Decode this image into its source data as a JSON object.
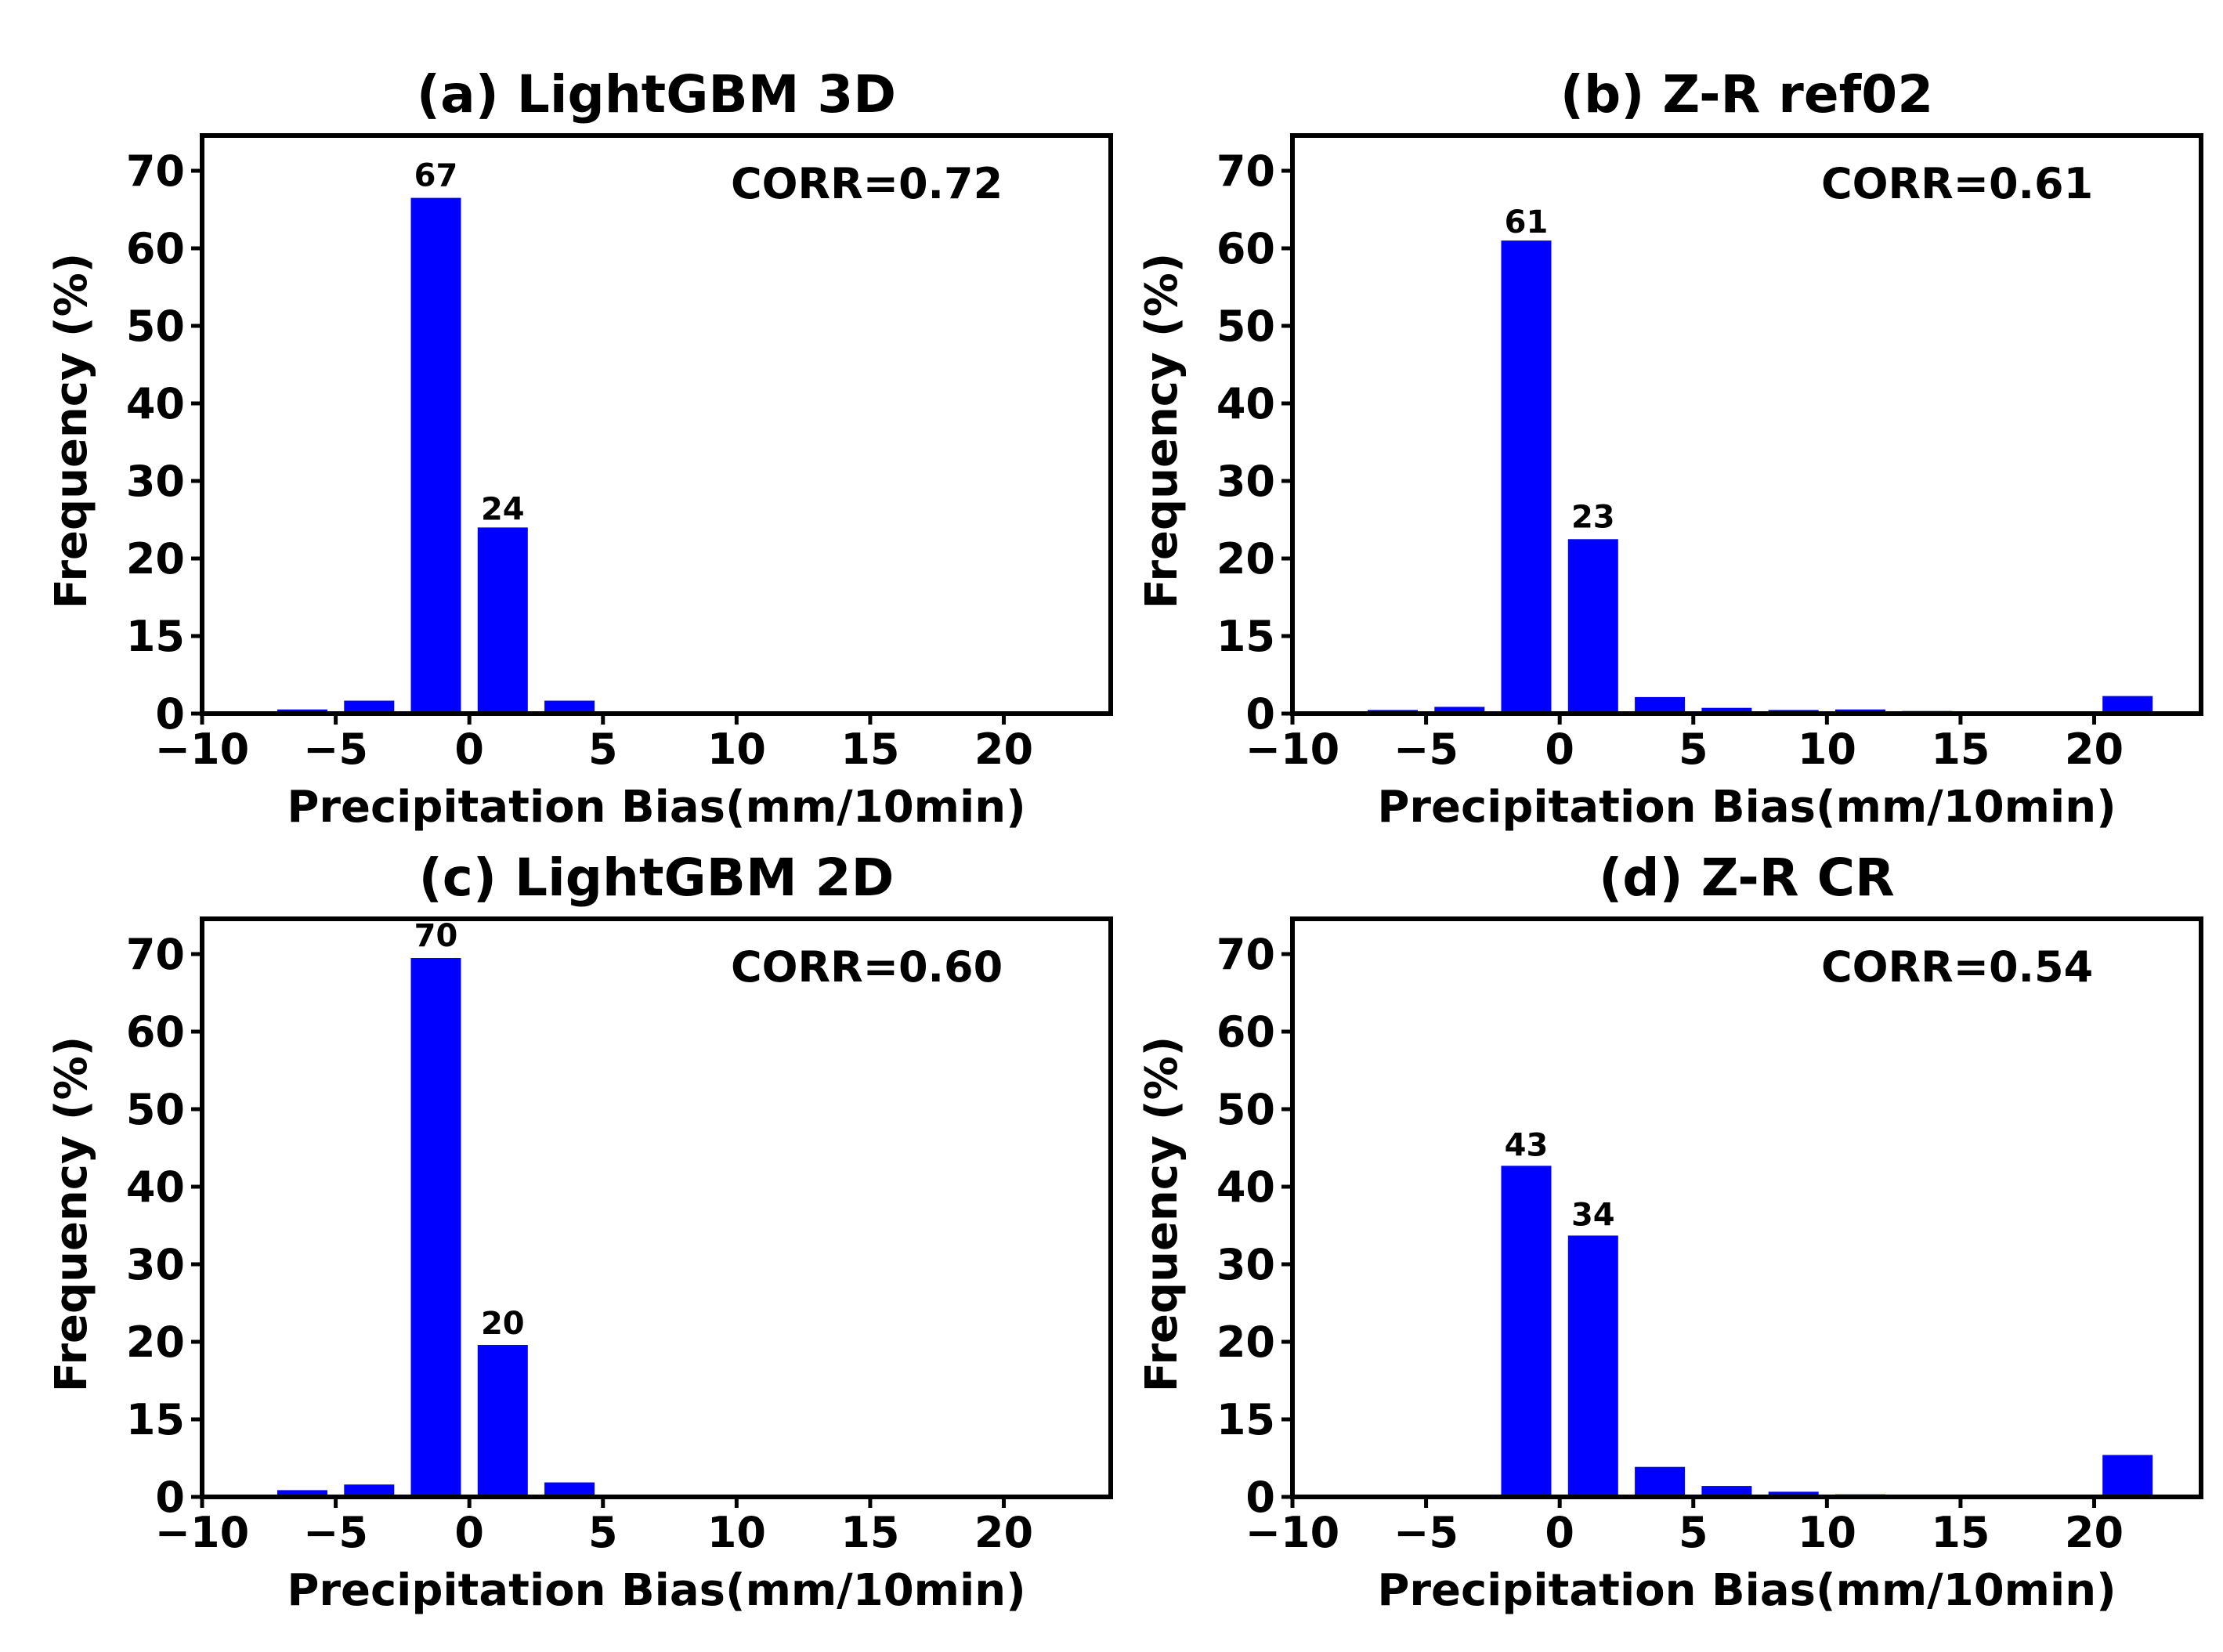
{
  "figure": {
    "bar_color": "#0000ff",
    "axis_color": "#000000",
    "background": "#ffffff"
  },
  "chart_data": [
    {
      "id": "a",
      "type": "bar",
      "title": "(a) LightGBM 3D",
      "xlabel": "Precipitation Bias(mm/10min)",
      "ylabel": "Frequency (%)",
      "annotation": "CORR=0.72",
      "xlim": [
        -10,
        24
      ],
      "ylim": [
        0,
        75
      ],
      "xticks": [
        -10,
        -5,
        0,
        5,
        10,
        15,
        20
      ],
      "xtick_labels": [
        "−10",
        "−5",
        "0",
        "5",
        "10",
        "15",
        "20"
      ],
      "yticks": [
        0,
        15,
        20,
        30,
        40,
        50,
        60,
        70
      ],
      "x": [
        -8.75,
        -6.25,
        -3.75,
        -1.25,
        1.25,
        3.75,
        6.25,
        8.75,
        11.25,
        13.75,
        16.25,
        18.75,
        21.25
      ],
      "values": [
        0.1,
        0.8,
        2.5,
        66.5,
        24.0,
        2.5,
        0,
        0,
        0,
        0,
        0,
        0,
        0
      ],
      "bar_labels": [
        {
          "x": -1.25,
          "value": 67,
          "text": "67"
        },
        {
          "x": 1.25,
          "value": 24,
          "text": "24"
        }
      ]
    },
    {
      "id": "b",
      "type": "bar",
      "title": "(b) Z-R ref02",
      "xlabel": "Precipitation Bias(mm/10min)",
      "ylabel": "Frequency (%)",
      "annotation": "CORR=0.61",
      "xlim": [
        -10,
        24
      ],
      "ylim": [
        0,
        75
      ],
      "xticks": [
        -10,
        -5,
        0,
        5,
        10,
        15,
        20
      ],
      "xtick_labels": [
        "−10",
        "−5",
        "0",
        "5",
        "10",
        "15",
        "20"
      ],
      "yticks": [
        0,
        15,
        20,
        30,
        40,
        50,
        60,
        70
      ],
      "x": [
        -8.75,
        -6.25,
        -3.75,
        -1.25,
        1.25,
        3.75,
        6.25,
        8.75,
        11.25,
        13.75,
        16.25,
        18.75,
        21.25
      ],
      "values": [
        0,
        0.7,
        1.3,
        61.0,
        22.5,
        3.2,
        1.1,
        0.7,
        0.8,
        0.5,
        0,
        0,
        3.4
      ],
      "bar_labels": [
        {
          "x": -1.25,
          "value": 61,
          "text": "61"
        },
        {
          "x": 1.25,
          "value": 23,
          "text": "23"
        }
      ]
    },
    {
      "id": "c",
      "type": "bar",
      "title": "(c) LightGBM 2D",
      "xlabel": "Precipitation Bias(mm/10min)",
      "ylabel": "Frequency (%)",
      "annotation": "CORR=0.60",
      "xlim": [
        -10,
        24
      ],
      "ylim": [
        0,
        75
      ],
      "xticks": [
        -10,
        -5,
        0,
        5,
        10,
        15,
        20
      ],
      "xtick_labels": [
        "−10",
        "−5",
        "0",
        "5",
        "10",
        "15",
        "20"
      ],
      "yticks": [
        0,
        15,
        20,
        30,
        40,
        50,
        60,
        70
      ],
      "x": [
        -8.75,
        -6.25,
        -3.75,
        -1.25,
        1.25,
        3.75,
        6.25,
        8.75,
        11.25,
        13.75,
        16.25,
        18.75,
        21.25
      ],
      "values": [
        0.4,
        1.3,
        2.4,
        69.5,
        19.8,
        2.8,
        0,
        0,
        0,
        0,
        0,
        0,
        0
      ],
      "bar_labels": [
        {
          "x": -1.25,
          "value": 70,
          "text": "70"
        },
        {
          "x": 1.25,
          "value": 20,
          "text": "20"
        }
      ]
    },
    {
      "id": "d",
      "type": "bar",
      "title": "(d) Z-R CR",
      "xlabel": "Precipitation Bias(mm/10min)",
      "ylabel": "Frequency (%)",
      "annotation": "CORR=0.54",
      "xlim": [
        -10,
        24
      ],
      "ylim": [
        0,
        75
      ],
      "xticks": [
        -10,
        -5,
        0,
        5,
        10,
        15,
        20
      ],
      "xtick_labels": [
        "−10",
        "−5",
        "0",
        "5",
        "10",
        "15",
        "20"
      ],
      "yticks": [
        0,
        15,
        20,
        30,
        40,
        50,
        60,
        70
      ],
      "x": [
        -8.75,
        -6.25,
        -3.75,
        -1.25,
        1.25,
        3.75,
        6.25,
        8.75,
        11.25,
        13.75,
        16.25,
        18.75,
        21.25
      ],
      "values": [
        0,
        0,
        0,
        42.7,
        33.7,
        5.8,
        2.1,
        1.0,
        0.5,
        0.4,
        0.4,
        0.3,
        8.1
      ],
      "bar_labels": [
        {
          "x": -1.25,
          "value": 43,
          "text": "43"
        },
        {
          "x": 1.25,
          "value": 34,
          "text": "34"
        }
      ]
    }
  ]
}
